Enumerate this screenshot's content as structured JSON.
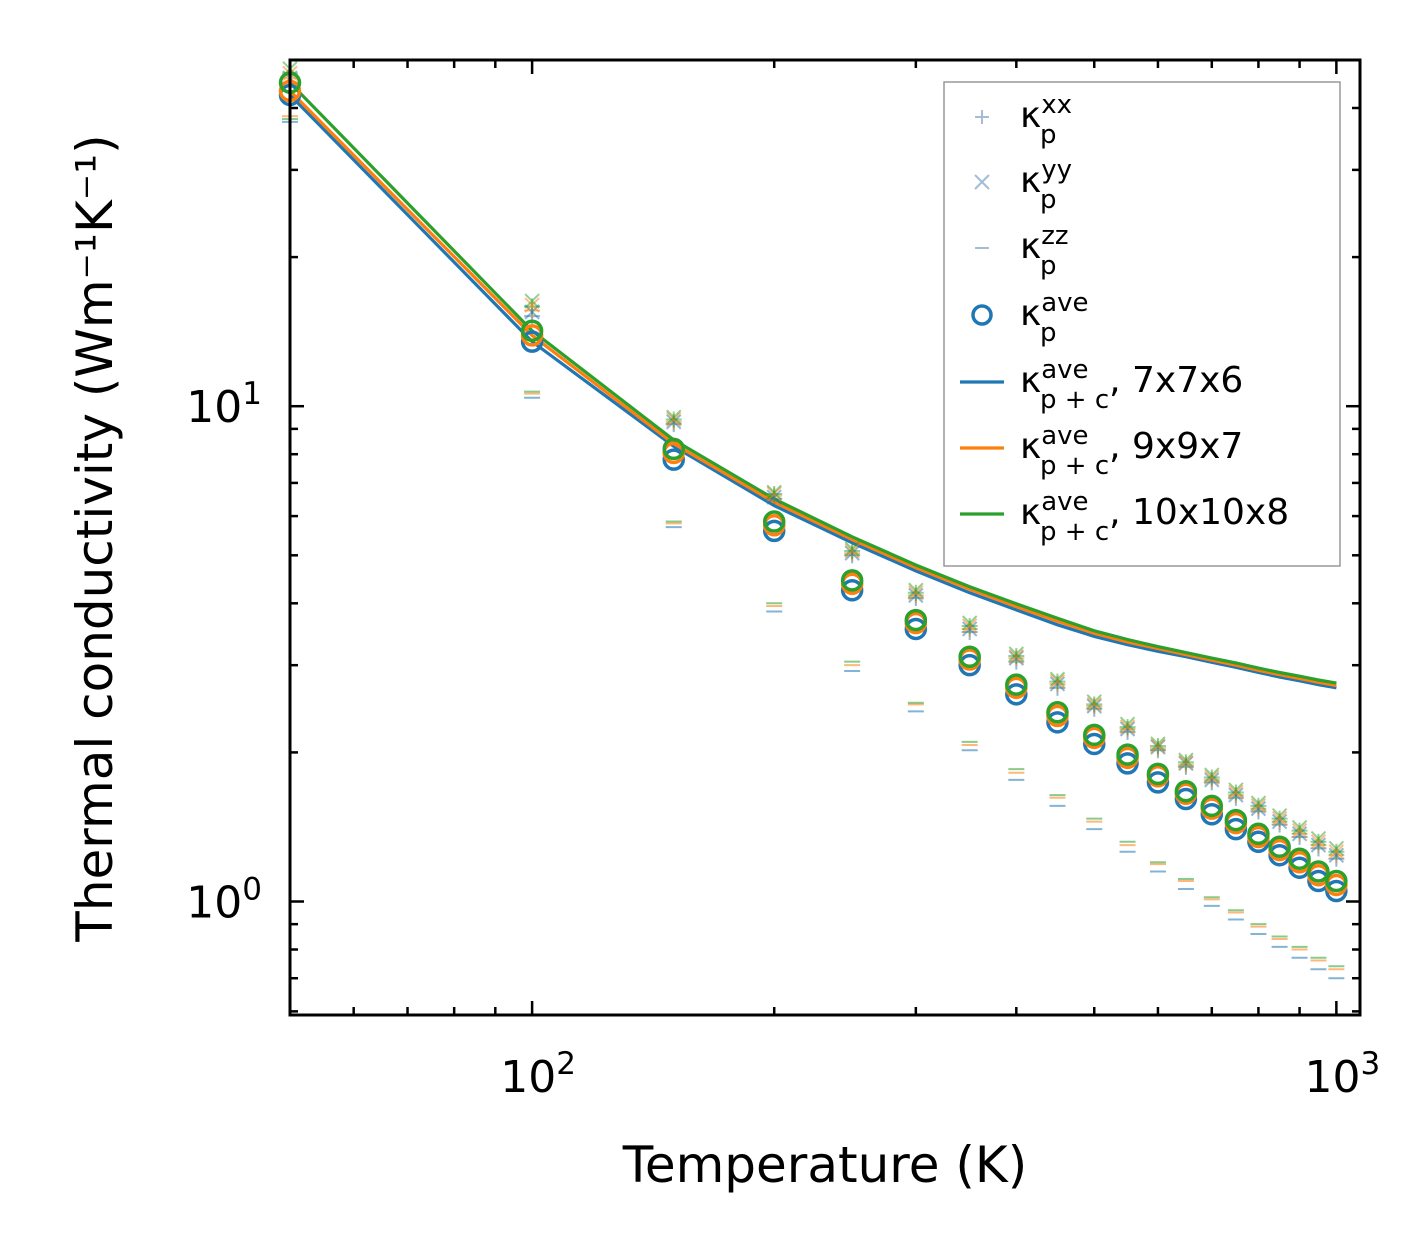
{
  "chart_data": {
    "type": "scatter",
    "title": "",
    "xlabel": "Temperature (K)",
    "ylabel": "Thermal conductivity (Wm⁻¹K⁻¹)",
    "xscale": "log",
    "yscale": "log",
    "xlim": [
      50,
      1070
    ],
    "ylim": [
      0.59,
      50
    ],
    "x_ticks": [
      {
        "value": 100,
        "base": "10",
        "exp": "2"
      },
      {
        "value": 1000,
        "base": "10",
        "exp": "3"
      }
    ],
    "y_ticks": [
      {
        "value": 1,
        "base": "10",
        "exp": "0"
      },
      {
        "value": 10,
        "base": "10",
        "exp": "1"
      }
    ],
    "legend_position": "upper right",
    "temperatures": [
      50,
      100,
      150,
      200,
      250,
      300,
      350,
      400,
      450,
      500,
      550,
      600,
      650,
      700,
      750,
      800,
      850,
      900,
      950,
      1000
    ],
    "series": [
      {
        "name": "7x7x6",
        "color": "#1f77b4",
        "kxx": [
          45.0,
          15.2,
          9.2,
          6.5,
          5.0,
          4.1,
          3.5,
          3.05,
          2.7,
          2.45,
          2.2,
          2.02,
          1.87,
          1.74,
          1.62,
          1.52,
          1.43,
          1.35,
          1.28,
          1.22
        ],
        "kyy": [
          46.0,
          15.5,
          9.3,
          6.55,
          5.05,
          4.15,
          3.55,
          3.1,
          2.75,
          2.48,
          2.23,
          2.05,
          1.9,
          1.76,
          1.64,
          1.54,
          1.45,
          1.37,
          1.3,
          1.24
        ],
        "kzz": [
          37.5,
          10.4,
          5.7,
          3.85,
          2.92,
          2.42,
          2.02,
          1.76,
          1.56,
          1.4,
          1.26,
          1.15,
          1.06,
          0.98,
          0.92,
          0.86,
          0.81,
          0.77,
          0.73,
          0.7
        ],
        "kave": [
          42.5,
          13.5,
          7.8,
          5.6,
          4.25,
          3.55,
          3.0,
          2.62,
          2.3,
          2.08,
          1.9,
          1.74,
          1.61,
          1.5,
          1.4,
          1.32,
          1.24,
          1.17,
          1.1,
          1.05
        ],
        "kpc": [
          42.5,
          13.5,
          8.3,
          6.3,
          5.3,
          4.65,
          4.2,
          3.88,
          3.62,
          3.43,
          3.3,
          3.2,
          3.12,
          3.04,
          2.97,
          2.9,
          2.84,
          2.79,
          2.74,
          2.7
        ]
      },
      {
        "name": "9x9x7",
        "color": "#ff7f0e",
        "kxx": [
          46.0,
          15.6,
          9.3,
          6.6,
          5.05,
          4.15,
          3.55,
          3.1,
          2.75,
          2.48,
          2.23,
          2.04,
          1.89,
          1.76,
          1.64,
          1.54,
          1.45,
          1.37,
          1.3,
          1.24
        ],
        "kyy": [
          47.0,
          16.0,
          9.4,
          6.65,
          5.1,
          4.2,
          3.6,
          3.12,
          2.78,
          2.5,
          2.25,
          2.06,
          1.91,
          1.78,
          1.66,
          1.56,
          1.47,
          1.39,
          1.32,
          1.26
        ],
        "kzz": [
          38.5,
          10.6,
          5.8,
          3.95,
          3.0,
          2.5,
          2.07,
          1.82,
          1.62,
          1.45,
          1.3,
          1.19,
          1.1,
          1.01,
          0.95,
          0.89,
          0.84,
          0.8,
          0.76,
          0.73
        ],
        "kave": [
          43.3,
          13.9,
          8.05,
          5.75,
          4.38,
          3.65,
          3.08,
          2.7,
          2.37,
          2.14,
          1.95,
          1.79,
          1.65,
          1.54,
          1.44,
          1.35,
          1.27,
          1.2,
          1.13,
          1.08
        ],
        "kpc": [
          43.3,
          13.9,
          8.4,
          6.4,
          5.38,
          4.72,
          4.27,
          3.94,
          3.68,
          3.48,
          3.34,
          3.24,
          3.15,
          3.07,
          3.0,
          2.93,
          2.87,
          2.82,
          2.77,
          2.73
        ]
      },
      {
        "name": "10x10x8",
        "color": "#2ca02c",
        "kxx": [
          47.0,
          15.9,
          9.4,
          6.65,
          5.1,
          4.2,
          3.6,
          3.13,
          2.78,
          2.5,
          2.25,
          2.06,
          1.91,
          1.78,
          1.66,
          1.56,
          1.47,
          1.39,
          1.32,
          1.26
        ],
        "kyy": [
          48.0,
          16.3,
          9.5,
          6.7,
          5.15,
          4.25,
          3.65,
          3.16,
          2.81,
          2.53,
          2.28,
          2.08,
          1.93,
          1.8,
          1.68,
          1.58,
          1.49,
          1.41,
          1.34,
          1.28
        ],
        "kzz": [
          38.0,
          10.7,
          5.85,
          4.0,
          3.05,
          2.52,
          2.1,
          1.85,
          1.64,
          1.47,
          1.32,
          1.2,
          1.11,
          1.02,
          0.96,
          0.9,
          0.85,
          0.81,
          0.77,
          0.74
        ],
        "kave": [
          45.0,
          14.2,
          8.2,
          5.85,
          4.45,
          3.7,
          3.12,
          2.74,
          2.41,
          2.17,
          1.98,
          1.81,
          1.67,
          1.56,
          1.46,
          1.37,
          1.29,
          1.22,
          1.15,
          1.1
        ],
        "kpc": [
          45.0,
          14.2,
          8.55,
          6.5,
          5.45,
          4.78,
          4.32,
          3.99,
          3.73,
          3.52,
          3.38,
          3.27,
          3.18,
          3.1,
          3.03,
          2.96,
          2.9,
          2.85,
          2.8,
          2.76
        ]
      }
    ],
    "legend": [
      {
        "symbol": "+",
        "base": "κ",
        "sub": "p",
        "sup": "xx",
        "suffix": ""
      },
      {
        "symbol": "x",
        "base": "κ",
        "sub": "p",
        "sup": "yy",
        "suffix": ""
      },
      {
        "symbol": "_",
        "base": "κ",
        "sub": "p",
        "sup": "zz",
        "suffix": ""
      },
      {
        "symbol": "o",
        "base": "κ",
        "sub": "p",
        "sup": "ave",
        "suffix": ""
      },
      {
        "symbol": "line",
        "color": "#1f77b4",
        "base": "κ",
        "sub": "p + c",
        "sup": "ave",
        "suffix": ", 7x7x6"
      },
      {
        "symbol": "line",
        "color": "#ff7f0e",
        "base": "κ",
        "sub": "p + c",
        "sup": "ave",
        "suffix": ", 9x9x7"
      },
      {
        "symbol": "line",
        "color": "#2ca02c",
        "base": "κ",
        "sub": "p + c",
        "sup": "ave",
        "suffix": ", 10x10x8"
      }
    ]
  }
}
